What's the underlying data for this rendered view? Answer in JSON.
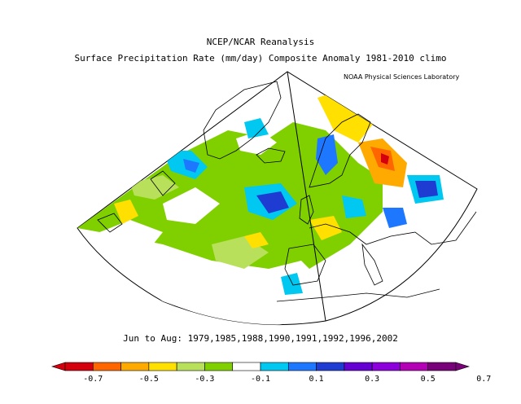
{
  "header": {
    "title": "NCEP/NCAR Reanalysis",
    "subtitle": "Surface Precipitation Rate (mm/day) Composite Anomaly 1981-2010 climo",
    "credit": "NOAA Physical Sciences Laboratory"
  },
  "footer": {
    "period": "Jun to Aug: 1979,1985,1988,1990,1991,1992,1996,2002"
  },
  "colorbar": {
    "labels": [
      "-0.7",
      "-0.5",
      "-0.3",
      "-0.1",
      "0.1",
      "0.3",
      "0.5",
      "0.7"
    ],
    "colors": [
      "#d4000e",
      "#ff6600",
      "#ffaa00",
      "#ffe000",
      "#b8e05a",
      "#80d000",
      "#ffffff",
      "#00c8f0",
      "#1e78ff",
      "#1e3cd2",
      "#6400d2",
      "#8c00dc",
      "#b400b4",
      "#780078"
    ]
  },
  "map": {
    "projection": "conic",
    "region": "North Atlantic and Europe"
  }
}
